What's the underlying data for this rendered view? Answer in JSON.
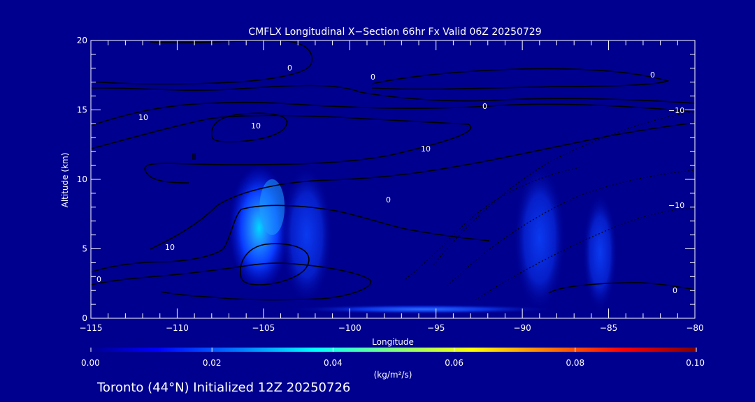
{
  "chart_data": {
    "type": "heatmap",
    "title": "CMFLX Longitudinal X−Section 66hr  Fx Valid 06Z 20250729",
    "xlabel": "Longitude",
    "ylabel": "Altitude (km)",
    "xlim": [
      -115,
      -80
    ],
    "ylim": [
      0,
      20
    ],
    "x_ticks": [
      -115,
      -110,
      -105,
      -100,
      -95,
      -90,
      -85,
      -80
    ],
    "x_tick_labels": [
      "−115",
      "−110",
      "−105",
      "−100",
      "−95",
      "−90",
      "−85",
      "−80"
    ],
    "y_ticks": [
      0,
      5,
      10,
      15,
      20
    ],
    "y_tick_labels": [
      "0",
      "5",
      "10",
      "15",
      "20"
    ],
    "colorbar": {
      "min": 0.0,
      "max": 0.1,
      "ticks": [
        0.0,
        0.02,
        0.04,
        0.06,
        0.08,
        0.1
      ],
      "tick_labels": [
        "0.00",
        "0.02",
        "0.04",
        "0.06",
        "0.08",
        "0.10"
      ],
      "units": "(kg/m²/s)",
      "colors": [
        "#00008f",
        "#0000ff",
        "#0080ff",
        "#00ffff",
        "#80ff80",
        "#ffff00",
        "#ff8000",
        "#ff0000",
        "#800000"
      ]
    },
    "flux_cells": [
      {
        "lon_range": [
          -107,
          -103.5
        ],
        "alt_range": [
          2,
          11
        ],
        "peak_value": 0.035,
        "peak_lon": -104.5,
        "peak_alt": 8
      },
      {
        "lon_range": [
          -104,
          -101
        ],
        "alt_range": [
          1,
          11
        ],
        "peak_value": 0.012,
        "peak_lon": -102.5,
        "peak_alt": 6
      },
      {
        "lon_range": [
          -90.5,
          -87.5
        ],
        "alt_range": [
          0.5,
          11
        ],
        "peak_value": 0.012,
        "peak_lon": -89,
        "peak_alt": 6
      },
      {
        "lon_range": [
          -86.5,
          -84.5
        ],
        "alt_range": [
          0.5,
          9
        ],
        "peak_value": 0.01,
        "peak_lon": -85.3,
        "peak_alt": 5
      },
      {
        "lon_range": [
          -103.5,
          -88
        ],
        "alt_range": [
          0.3,
          1
        ],
        "peak_value": 0.015,
        "peak_lon": -102.5,
        "peak_alt": 0.6
      }
    ],
    "contour_labels": [
      "0",
      "10",
      "−10"
    ],
    "grid": false,
    "colorbar_placement": "bottom"
  },
  "footer": {
    "caption": "Toronto (44°N) Initialized 12Z 20250726"
  },
  "colors": {
    "background": "#00008f",
    "contour": "#000000",
    "text": "#ffffff"
  }
}
